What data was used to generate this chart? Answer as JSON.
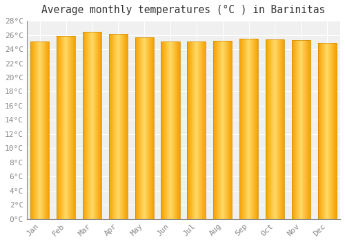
{
  "title": "Average monthly temperatures (°C ) in Barinitas",
  "months": [
    "Jan",
    "Feb",
    "Mar",
    "Apr",
    "May",
    "Jun",
    "Jul",
    "Aug",
    "Sep",
    "Oct",
    "Nov",
    "Dec"
  ],
  "values": [
    25.1,
    25.9,
    26.4,
    26.2,
    25.7,
    25.1,
    25.1,
    25.2,
    25.5,
    25.4,
    25.3,
    24.9
  ],
  "bar_color_center": "#FFD966",
  "bar_color_edge": "#F5A000",
  "bar_border_color": "#CC8800",
  "ylim": [
    0,
    28
  ],
  "ytick_step": 2,
  "background_color": "#ffffff",
  "plot_bg_color": "#f0f0f0",
  "grid_color": "#ffffff",
  "title_fontsize": 10.5,
  "tick_fontsize": 8,
  "tick_color": "#888888",
  "font_family": "monospace",
  "bar_width": 0.72
}
